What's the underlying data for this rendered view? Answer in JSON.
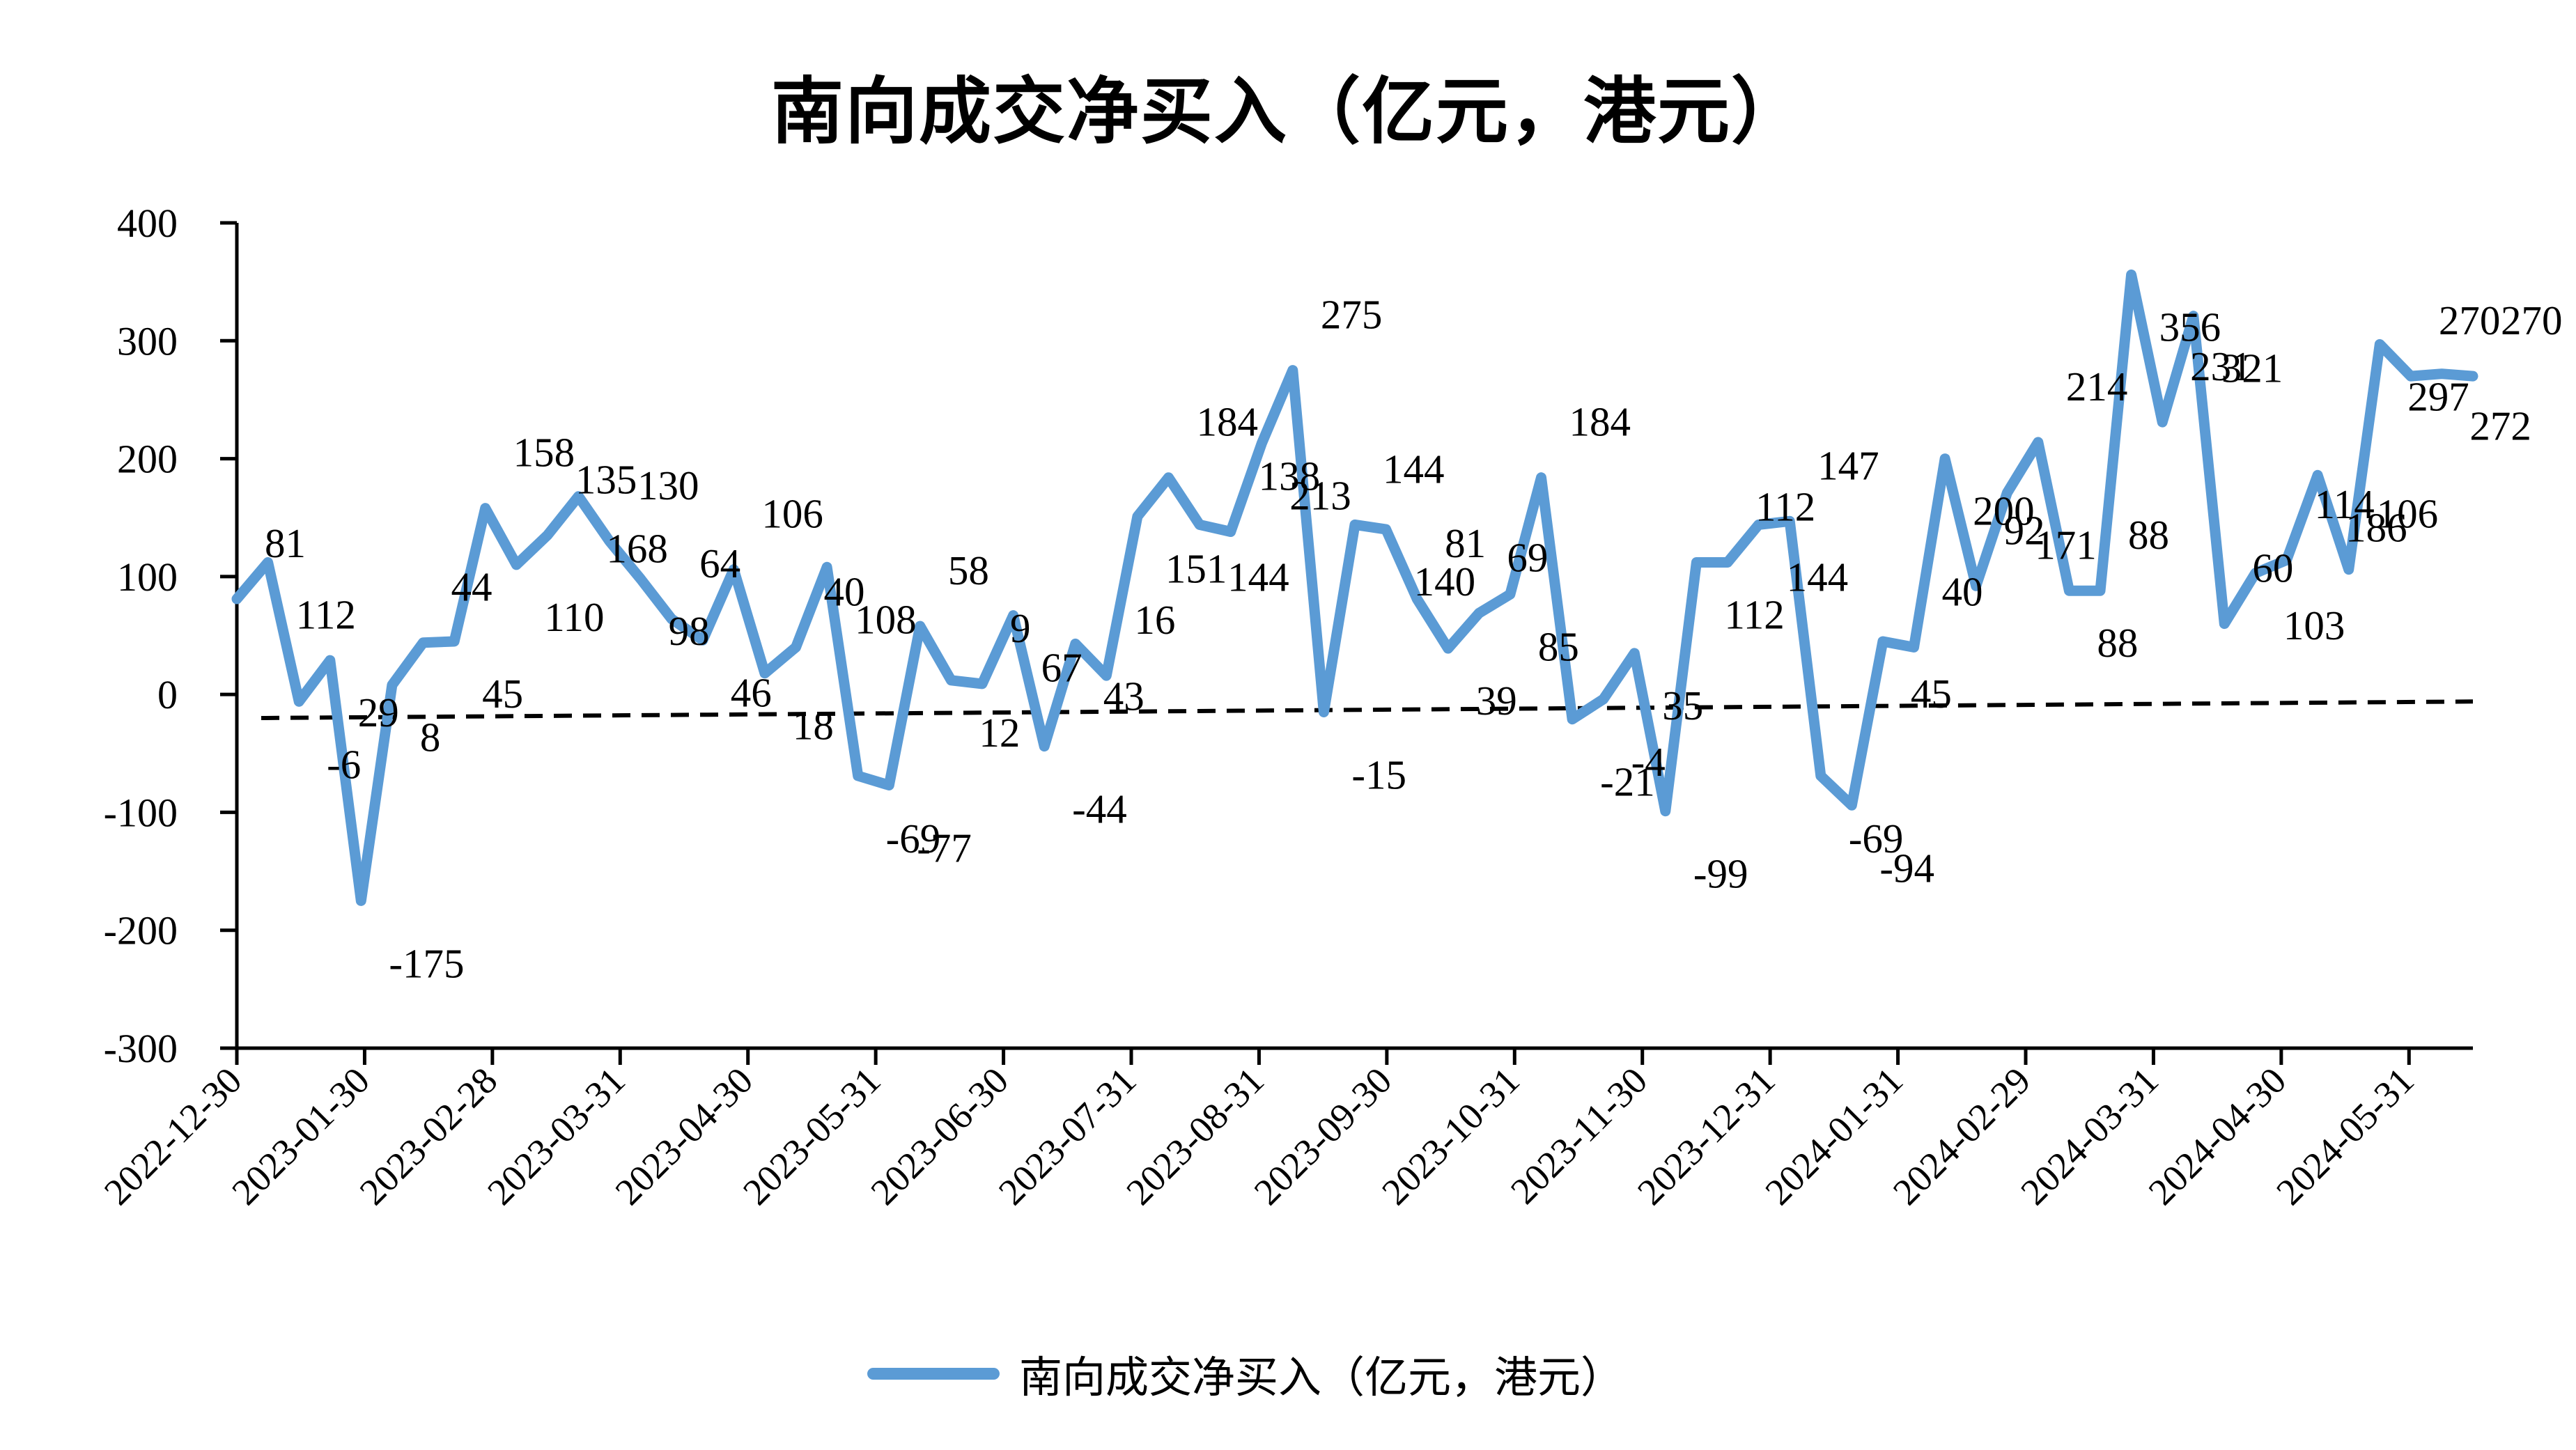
{
  "chart_data": {
    "type": "line",
    "title": "南向成交净买入（亿元，港元）",
    "xlabel": "",
    "ylabel": "",
    "ylim": [
      -300,
      400
    ],
    "yticks": [
      -300,
      -200,
      -100,
      0,
      100,
      200,
      300,
      400
    ],
    "xtick_labels": [
      "2022-12-30",
      "2023-01-30",
      "2023-02-28",
      "2023-03-31",
      "2023-04-30",
      "2023-05-31",
      "2023-06-30",
      "2023-07-31",
      "2023-08-31",
      "2023-09-30",
      "2023-10-31",
      "2023-11-30",
      "2023-12-31",
      "2024-01-31",
      "2024-02-29",
      "2024-03-31",
      "2024-04-30",
      "2024-05-31"
    ],
    "legend_position": "bottom",
    "grid": false,
    "series_color": "#5B9BD5",
    "trend_color": "#000000",
    "series": [
      {
        "name": "南向成交净买入（亿元，港元）",
        "values": [
          81,
          112,
          -6,
          29,
          -175,
          8,
          44,
          45,
          158,
          110,
          135,
          168,
          130,
          98,
          64,
          46,
          106,
          18,
          40,
          108,
          -69,
          -77,
          58,
          12,
          9,
          67,
          -44,
          43,
          16,
          151,
          184,
          144,
          138,
          213,
          275,
          -15,
          144,
          140,
          81,
          39,
          69,
          85,
          184,
          -21,
          -4,
          35,
          -99,
          112,
          112,
          144,
          147,
          -69,
          -94,
          45,
          40,
          200,
          92,
          171,
          214,
          88,
          88,
          356,
          231,
          321,
          60,
          103,
          114,
          186,
          106,
          297,
          270,
          272,
          270
        ]
      }
    ],
    "trend": {
      "style": "dashed",
      "start": -20,
      "end": -6
    }
  }
}
